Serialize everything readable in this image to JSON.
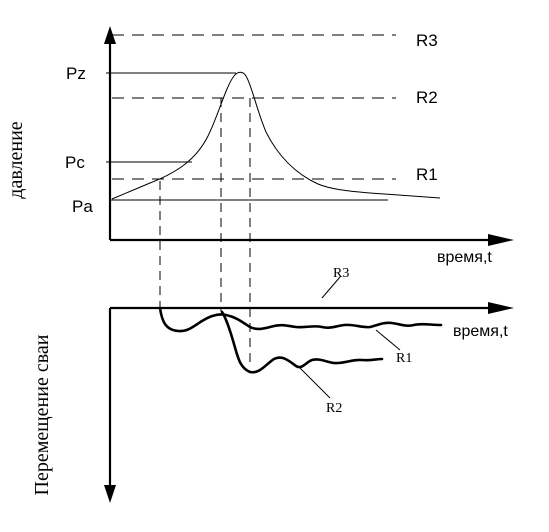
{
  "top_chart": {
    "y_axis_label": "давление",
    "x_axis_label": "время,t",
    "tick_labels": {
      "pz": "Pz",
      "pc": "Pc",
      "pa": "Pa"
    },
    "line_labels": {
      "r3": "R3",
      "r2": "R2",
      "r1": "R1"
    }
  },
  "bottom_chart": {
    "y_axis_label": "Перемещение сваи",
    "x_axis_label": "время,t",
    "curve_labels": {
      "r3": "R3",
      "r1": "R1",
      "r2": "R2"
    }
  }
}
